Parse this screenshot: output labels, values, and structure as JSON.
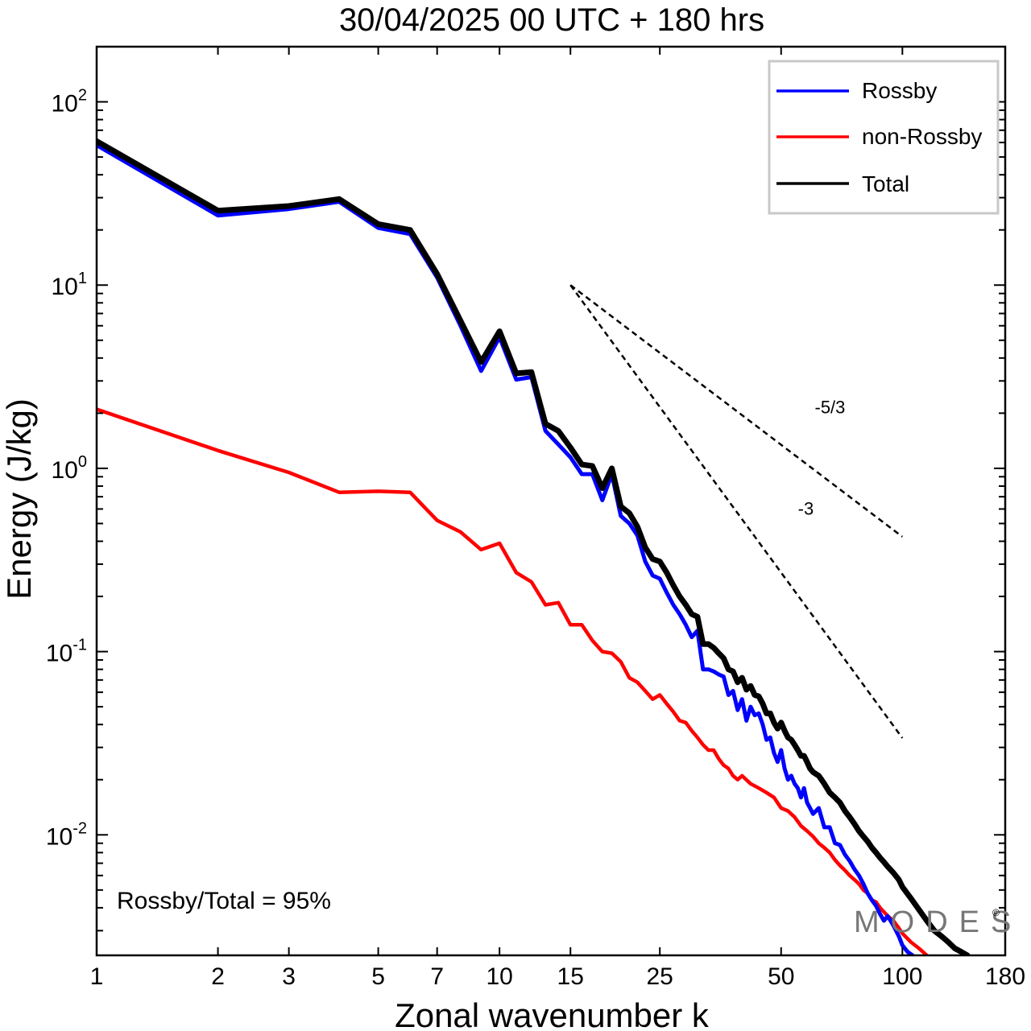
{
  "chart_data": {
    "type": "line",
    "title": "30/04/2025  00 UTC  + 180 hrs",
    "xlabel": "Zonal wavenumber k",
    "ylabel": "Energy (J/kg)",
    "x_scale": "log",
    "y_scale": "log",
    "xlim": [
      1,
      180
    ],
    "ylim": [
      0.0022,
      200
    ],
    "x_ticks": [
      1,
      2,
      3,
      5,
      7,
      10,
      15,
      25,
      50,
      100,
      180
    ],
    "x_tick_labels": [
      "1",
      "2",
      "3",
      "5",
      "7",
      "10",
      "15",
      "25",
      "50",
      "100",
      "180"
    ],
    "y_ticks": [
      {
        "value": 100,
        "base": "10",
        "exp": "2"
      },
      {
        "value": 10,
        "base": "10",
        "exp": "1"
      },
      {
        "value": 1,
        "base": "10",
        "exp": "0"
      },
      {
        "value": 0.1,
        "base": "10",
        "exp": "-1"
      },
      {
        "value": 0.01,
        "base": "10",
        "exp": "-2"
      }
    ],
    "grid": false,
    "legend_position": "top-right",
    "series": [
      {
        "name": "Rossby",
        "color": "#0000ff",
        "points": [
          [
            1,
            58
          ],
          [
            2,
            24
          ],
          [
            3,
            26
          ],
          [
            4,
            28.5
          ],
          [
            5,
            20.5
          ],
          [
            6,
            19
          ],
          [
            7,
            11
          ],
          [
            8,
            6
          ],
          [
            9,
            3.4
          ],
          [
            10,
            5.2
          ],
          [
            11,
            3.05
          ],
          [
            12,
            3.15
          ],
          [
            13,
            1.6
          ],
          [
            14,
            1.35
          ],
          [
            15,
            1.15
          ],
          [
            16,
            0.93
          ],
          [
            17,
            0.93
          ],
          [
            18,
            0.67
          ],
          [
            19,
            0.93
          ],
          [
            20,
            0.55
          ],
          [
            21,
            0.5
          ],
          [
            22,
            0.43
          ],
          [
            23,
            0.31
          ],
          [
            24,
            0.26
          ],
          [
            25,
            0.25
          ],
          [
            26,
            0.21
          ],
          [
            27,
            0.18
          ],
          [
            28,
            0.16
          ],
          [
            29,
            0.14
          ],
          [
            30,
            0.12
          ],
          [
            31,
            0.13
          ],
          [
            32,
            0.08
          ],
          [
            33,
            0.08
          ],
          [
            34,
            0.078
          ],
          [
            35,
            0.075
          ],
          [
            36,
            0.073
          ],
          [
            37,
            0.058
          ],
          [
            38,
            0.061
          ],
          [
            39,
            0.048
          ],
          [
            40,
            0.055
          ],
          [
            41,
            0.042
          ],
          [
            42,
            0.05
          ],
          [
            43,
            0.045
          ],
          [
            44,
            0.046
          ],
          [
            45,
            0.04
          ],
          [
            46,
            0.033
          ],
          [
            47,
            0.034
          ],
          [
            48,
            0.028
          ],
          [
            49,
            0.025
          ],
          [
            50,
            0.029
          ],
          [
            51,
            0.023
          ],
          [
            52,
            0.02
          ],
          [
            53,
            0.021
          ],
          [
            54,
            0.019
          ],
          [
            55,
            0.018
          ],
          [
            56,
            0.016
          ],
          [
            57,
            0.018
          ],
          [
            58,
            0.015
          ],
          [
            59,
            0.014
          ],
          [
            60,
            0.013
          ],
          [
            62,
            0.014
          ],
          [
            64,
            0.011
          ],
          [
            66,
            0.011
          ],
          [
            68,
            0.009
          ],
          [
            70,
            0.0088
          ],
          [
            72,
            0.0078
          ],
          [
            74,
            0.0072
          ],
          [
            76,
            0.0065
          ],
          [
            78,
            0.006
          ],
          [
            80,
            0.0054
          ],
          [
            82,
            0.0048
          ],
          [
            84,
            0.0044
          ],
          [
            86,
            0.0041
          ],
          [
            88,
            0.0037
          ],
          [
            90,
            0.0034
          ],
          [
            92,
            0.0036
          ],
          [
            95,
            0.0032
          ],
          [
            98,
            0.0028
          ],
          [
            100,
            0.0025
          ],
          [
            103,
            0.0023
          ],
          [
            106,
            0.0022
          ]
        ]
      },
      {
        "name": "non-Rossby",
        "color": "#ff0000",
        "points": [
          [
            1,
            2.1
          ],
          [
            2,
            1.25
          ],
          [
            3,
            0.95
          ],
          [
            4,
            0.74
          ],
          [
            5,
            0.75
          ],
          [
            6,
            0.74
          ],
          [
            7,
            0.52
          ],
          [
            8,
            0.45
          ],
          [
            9,
            0.36
          ],
          [
            10,
            0.39
          ],
          [
            11,
            0.27
          ],
          [
            12,
            0.24
          ],
          [
            13,
            0.18
          ],
          [
            14,
            0.185
          ],
          [
            15,
            0.14
          ],
          [
            16,
            0.14
          ],
          [
            17,
            0.115
          ],
          [
            18,
            0.1
          ],
          [
            19,
            0.098
          ],
          [
            20,
            0.088
          ],
          [
            21,
            0.072
          ],
          [
            22,
            0.068
          ],
          [
            23,
            0.061
          ],
          [
            24,
            0.055
          ],
          [
            25,
            0.058
          ],
          [
            26,
            0.052
          ],
          [
            27,
            0.047
          ],
          [
            28,
            0.042
          ],
          [
            29,
            0.041
          ],
          [
            30,
            0.037
          ],
          [
            31,
            0.034
          ],
          [
            32,
            0.031
          ],
          [
            33,
            0.029
          ],
          [
            34,
            0.029
          ],
          [
            35,
            0.026
          ],
          [
            36,
            0.024
          ],
          [
            37,
            0.023
          ],
          [
            38,
            0.021
          ],
          [
            39,
            0.02
          ],
          [
            40,
            0.021
          ],
          [
            42,
            0.019
          ],
          [
            44,
            0.018
          ],
          [
            46,
            0.017
          ],
          [
            48,
            0.016
          ],
          [
            50,
            0.014
          ],
          [
            52,
            0.0135
          ],
          [
            54,
            0.0125
          ],
          [
            56,
            0.0112
          ],
          [
            58,
            0.0105
          ],
          [
            60,
            0.0098
          ],
          [
            62,
            0.009
          ],
          [
            64,
            0.0085
          ],
          [
            66,
            0.008
          ],
          [
            68,
            0.0073
          ],
          [
            70,
            0.0068
          ],
          [
            72,
            0.0064
          ],
          [
            74,
            0.006
          ],
          [
            76,
            0.0057
          ],
          [
            78,
            0.0054
          ],
          [
            80,
            0.005
          ],
          [
            82,
            0.0048
          ],
          [
            84,
            0.0044
          ],
          [
            86,
            0.0043
          ],
          [
            88,
            0.004
          ],
          [
            90,
            0.0038
          ],
          [
            92,
            0.0036
          ],
          [
            95,
            0.0034
          ],
          [
            98,
            0.0031
          ],
          [
            100,
            0.0029
          ],
          [
            105,
            0.0026
          ],
          [
            110,
            0.0024
          ],
          [
            115,
            0.0022
          ]
        ]
      },
      {
        "name": "Total",
        "color": "#000000",
        "points": [
          [
            1,
            61
          ],
          [
            2,
            25.5
          ],
          [
            3,
            27
          ],
          [
            4,
            29.5
          ],
          [
            5,
            21.5
          ],
          [
            6,
            20
          ],
          [
            7,
            11.5
          ],
          [
            8,
            6.4
          ],
          [
            9,
            3.8
          ],
          [
            10,
            5.6
          ],
          [
            11,
            3.3
          ],
          [
            12,
            3.35
          ],
          [
            13,
            1.75
          ],
          [
            14,
            1.6
          ],
          [
            15,
            1.3
          ],
          [
            16,
            1.05
          ],
          [
            17,
            1.03
          ],
          [
            18,
            0.78
          ],
          [
            19,
            1.0
          ],
          [
            20,
            0.62
          ],
          [
            21,
            0.57
          ],
          [
            22,
            0.48
          ],
          [
            23,
            0.37
          ],
          [
            24,
            0.32
          ],
          [
            25,
            0.31
          ],
          [
            26,
            0.27
          ],
          [
            27,
            0.23
          ],
          [
            28,
            0.2
          ],
          [
            29,
            0.18
          ],
          [
            30,
            0.16
          ],
          [
            31,
            0.155
          ],
          [
            32,
            0.11
          ],
          [
            33,
            0.11
          ],
          [
            34,
            0.105
          ],
          [
            35,
            0.098
          ],
          [
            36,
            0.092
          ],
          [
            37,
            0.08
          ],
          [
            38,
            0.078
          ],
          [
            39,
            0.068
          ],
          [
            40,
            0.072
          ],
          [
            41,
            0.062
          ],
          [
            42,
            0.065
          ],
          [
            43,
            0.058
          ],
          [
            44,
            0.057
          ],
          [
            45,
            0.052
          ],
          [
            46,
            0.046
          ],
          [
            47,
            0.046
          ],
          [
            48,
            0.041
          ],
          [
            49,
            0.038
          ],
          [
            50,
            0.041
          ],
          [
            51,
            0.037
          ],
          [
            52,
            0.034
          ],
          [
            53,
            0.033
          ],
          [
            54,
            0.031
          ],
          [
            55,
            0.029
          ],
          [
            56,
            0.027
          ],
          [
            57,
            0.027
          ],
          [
            58,
            0.025
          ],
          [
            59,
            0.023
          ],
          [
            60,
            0.022
          ],
          [
            62,
            0.021
          ],
          [
            64,
            0.019
          ],
          [
            66,
            0.017
          ],
          [
            68,
            0.016
          ],
          [
            70,
            0.015
          ],
          [
            72,
            0.0135
          ],
          [
            74,
            0.0125
          ],
          [
            76,
            0.0115
          ],
          [
            78,
            0.0105
          ],
          [
            80,
            0.0098
          ],
          [
            82,
            0.0092
          ],
          [
            84,
            0.0085
          ],
          [
            86,
            0.008
          ],
          [
            88,
            0.0075
          ],
          [
            90,
            0.0071
          ],
          [
            92,
            0.0067
          ],
          [
            95,
            0.0062
          ],
          [
            98,
            0.0057
          ],
          [
            100,
            0.0052
          ],
          [
            105,
            0.0045
          ],
          [
            110,
            0.0039
          ],
          [
            115,
            0.0034
          ],
          [
            120,
            0.003
          ],
          [
            125,
            0.0028
          ],
          [
            130,
            0.0026
          ],
          [
            135,
            0.0024
          ],
          [
            140,
            0.0023
          ],
          [
            145,
            0.0022
          ]
        ]
      }
    ],
    "reference_slopes": [
      {
        "label": "-5/3",
        "slope": -1.6667,
        "x0": 15,
        "y0": 10,
        "x1": 100
      },
      {
        "label": "-3",
        "slope": -3,
        "x0": 15,
        "y0": 10,
        "x1": 100
      }
    ],
    "annotations": {
      "ratio_text": "Rossby/Total = 95%",
      "watermark": "MODES",
      "watermark_mark": "©"
    }
  }
}
